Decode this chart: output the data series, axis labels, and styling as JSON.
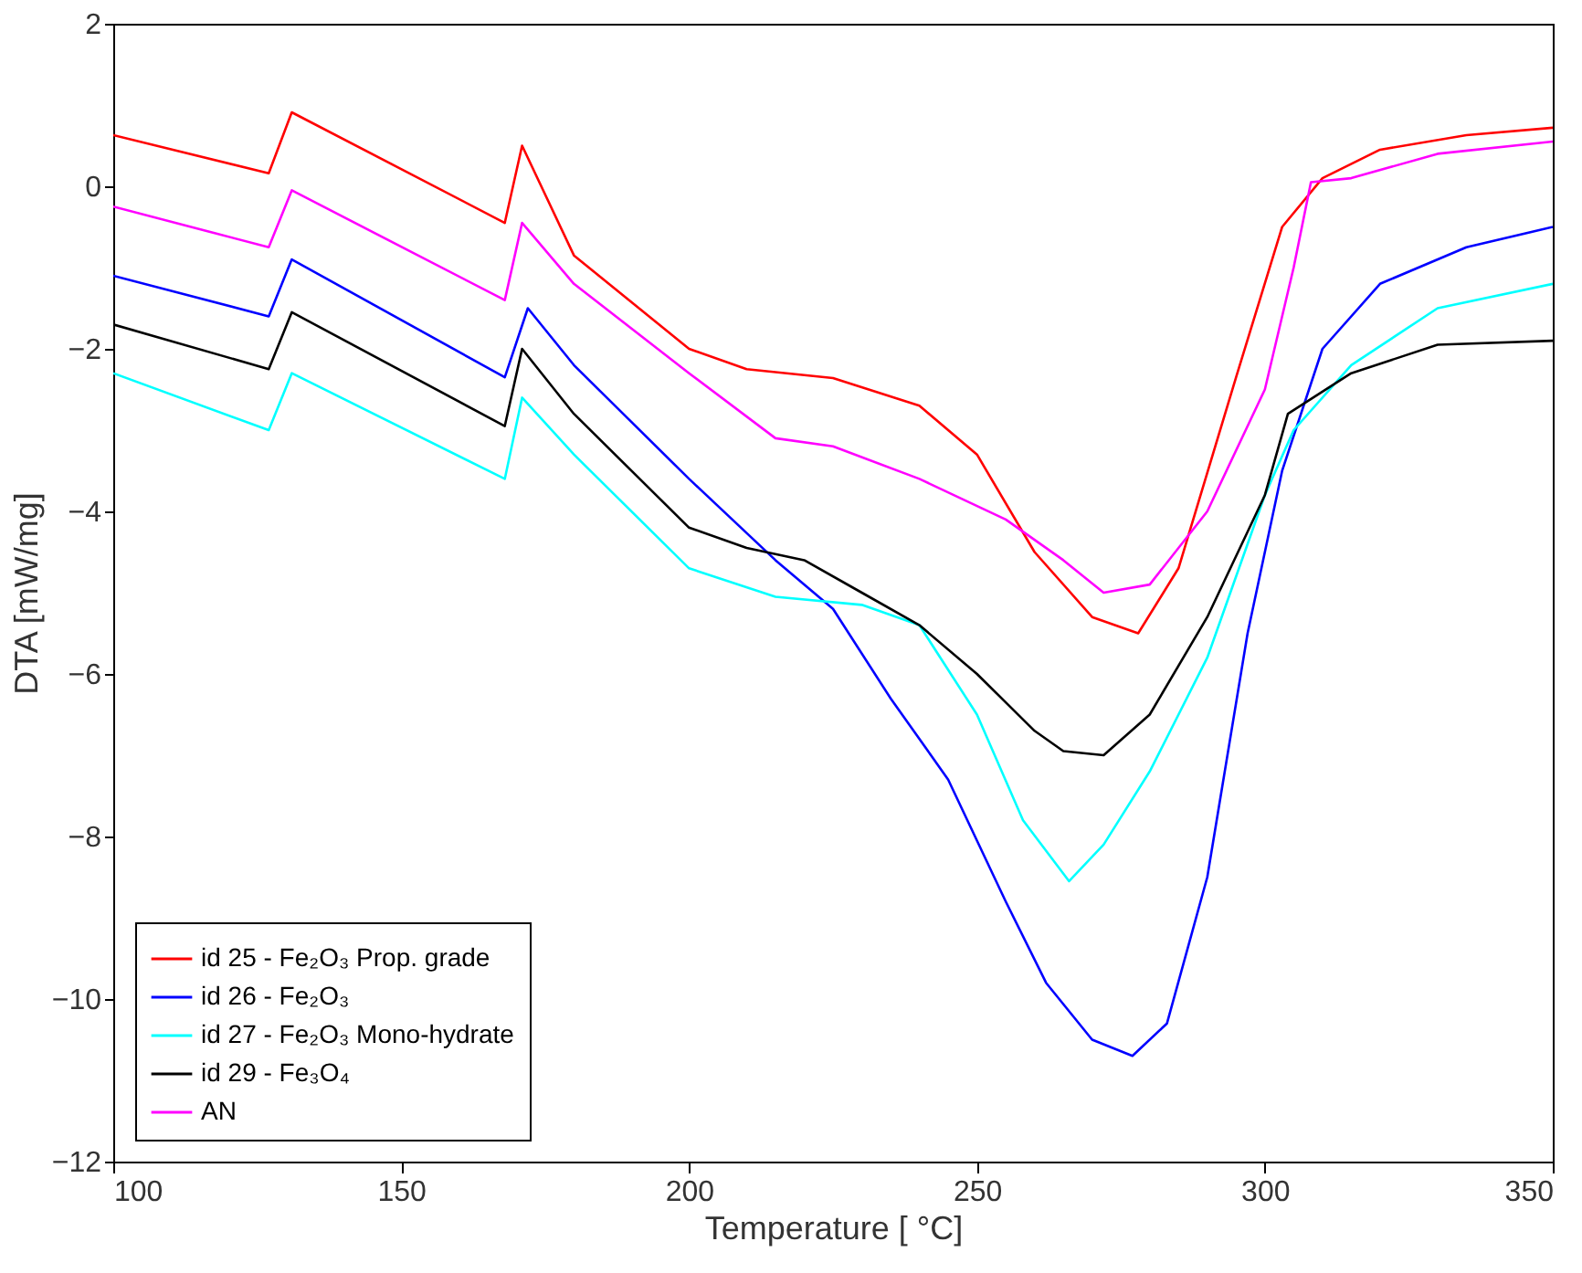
{
  "chart_data": {
    "type": "line",
    "xlabel": "Temperature [ °C]",
    "ylabel": "DTA [mW/mg]",
    "xlim": [
      100,
      350
    ],
    "xticks": [
      100,
      150,
      200,
      250,
      300,
      350
    ],
    "ylim": [
      -12,
      2
    ],
    "yticks": [
      -12,
      -10,
      -8,
      -6,
      -4,
      -2,
      0,
      2
    ],
    "grid": false,
    "legend": "bottom left",
    "line_style": "solid",
    "marker": "none",
    "series": [
      {
        "name": "id 25 - Fe₂O₃ Prop. grade",
        "color": "#ff0000",
        "x": [
          100,
          127,
          131,
          168,
          171,
          180,
          200,
          210,
          225,
          240,
          250,
          260,
          270,
          278,
          285,
          295,
          303,
          310,
          320,
          335,
          350
        ],
        "values": [
          0.63,
          0.16,
          0.91,
          -0.45,
          0.5,
          -0.85,
          -2.0,
          -2.25,
          -2.36,
          -2.7,
          -3.3,
          -4.5,
          -5.3,
          -5.5,
          -4.7,
          -2.35,
          -0.5,
          0.1,
          0.45,
          0.63,
          0.72
        ]
      },
      {
        "name": "id 26 - Fe₂O₃",
        "color": "#0000ff",
        "x": [
          100,
          127,
          131,
          168,
          172,
          180,
          200,
          215,
          225,
          235,
          245,
          255,
          262,
          270,
          277,
          283,
          290,
          297,
          303,
          310,
          320,
          335,
          350
        ],
        "values": [
          -1.1,
          -1.6,
          -0.9,
          -2.35,
          -1.5,
          -2.2,
          -3.6,
          -4.6,
          -5.2,
          -6.3,
          -7.3,
          -8.8,
          -9.8,
          -10.5,
          -10.7,
          -10.3,
          -8.5,
          -5.5,
          -3.5,
          -2.0,
          -1.2,
          -0.75,
          -0.5
        ]
      },
      {
        "name": "id 27 - Fe₂O₃ Mono-hydrate",
        "color": "#00ffff",
        "x": [
          100,
          127,
          131,
          168,
          171,
          180,
          200,
          215,
          230,
          240,
          250,
          258,
          266,
          272,
          280,
          290,
          300,
          305,
          315,
          330,
          350
        ],
        "values": [
          -2.3,
          -3.0,
          -2.3,
          -3.6,
          -2.6,
          -3.3,
          -4.7,
          -5.05,
          -5.15,
          -5.4,
          -6.5,
          -7.8,
          -8.55,
          -8.1,
          -7.2,
          -5.8,
          -3.8,
          -3.0,
          -2.2,
          -1.5,
          -1.2
        ]
      },
      {
        "name": "id 29 - Fe₃O₄",
        "color": "#000000",
        "x": [
          100,
          127,
          131,
          168,
          171,
          180,
          200,
          210,
          220,
          230,
          240,
          250,
          260,
          265,
          272,
          280,
          290,
          300,
          304,
          315,
          330,
          350
        ],
        "values": [
          -1.7,
          -2.25,
          -1.55,
          -2.95,
          -2.0,
          -2.8,
          -4.2,
          -4.45,
          -4.6,
          -5.0,
          -5.4,
          -6.0,
          -6.7,
          -6.95,
          -7.0,
          -6.5,
          -5.3,
          -3.8,
          -2.8,
          -2.3,
          -1.95,
          -1.9
        ]
      },
      {
        "name": "AN",
        "color": "#ff00ff",
        "x": [
          100,
          127,
          131,
          168,
          171,
          180,
          200,
          215,
          225,
          240,
          255,
          265,
          272,
          280,
          290,
          300,
          305,
          308,
          315,
          330,
          350
        ],
        "values": [
          -0.25,
          -0.75,
          -0.05,
          -1.4,
          -0.45,
          -1.2,
          -2.3,
          -3.1,
          -3.2,
          -3.6,
          -4.1,
          -4.6,
          -5.0,
          -4.9,
          -4.0,
          -2.5,
          -1.0,
          0.05,
          0.1,
          0.4,
          0.55
        ]
      }
    ]
  }
}
